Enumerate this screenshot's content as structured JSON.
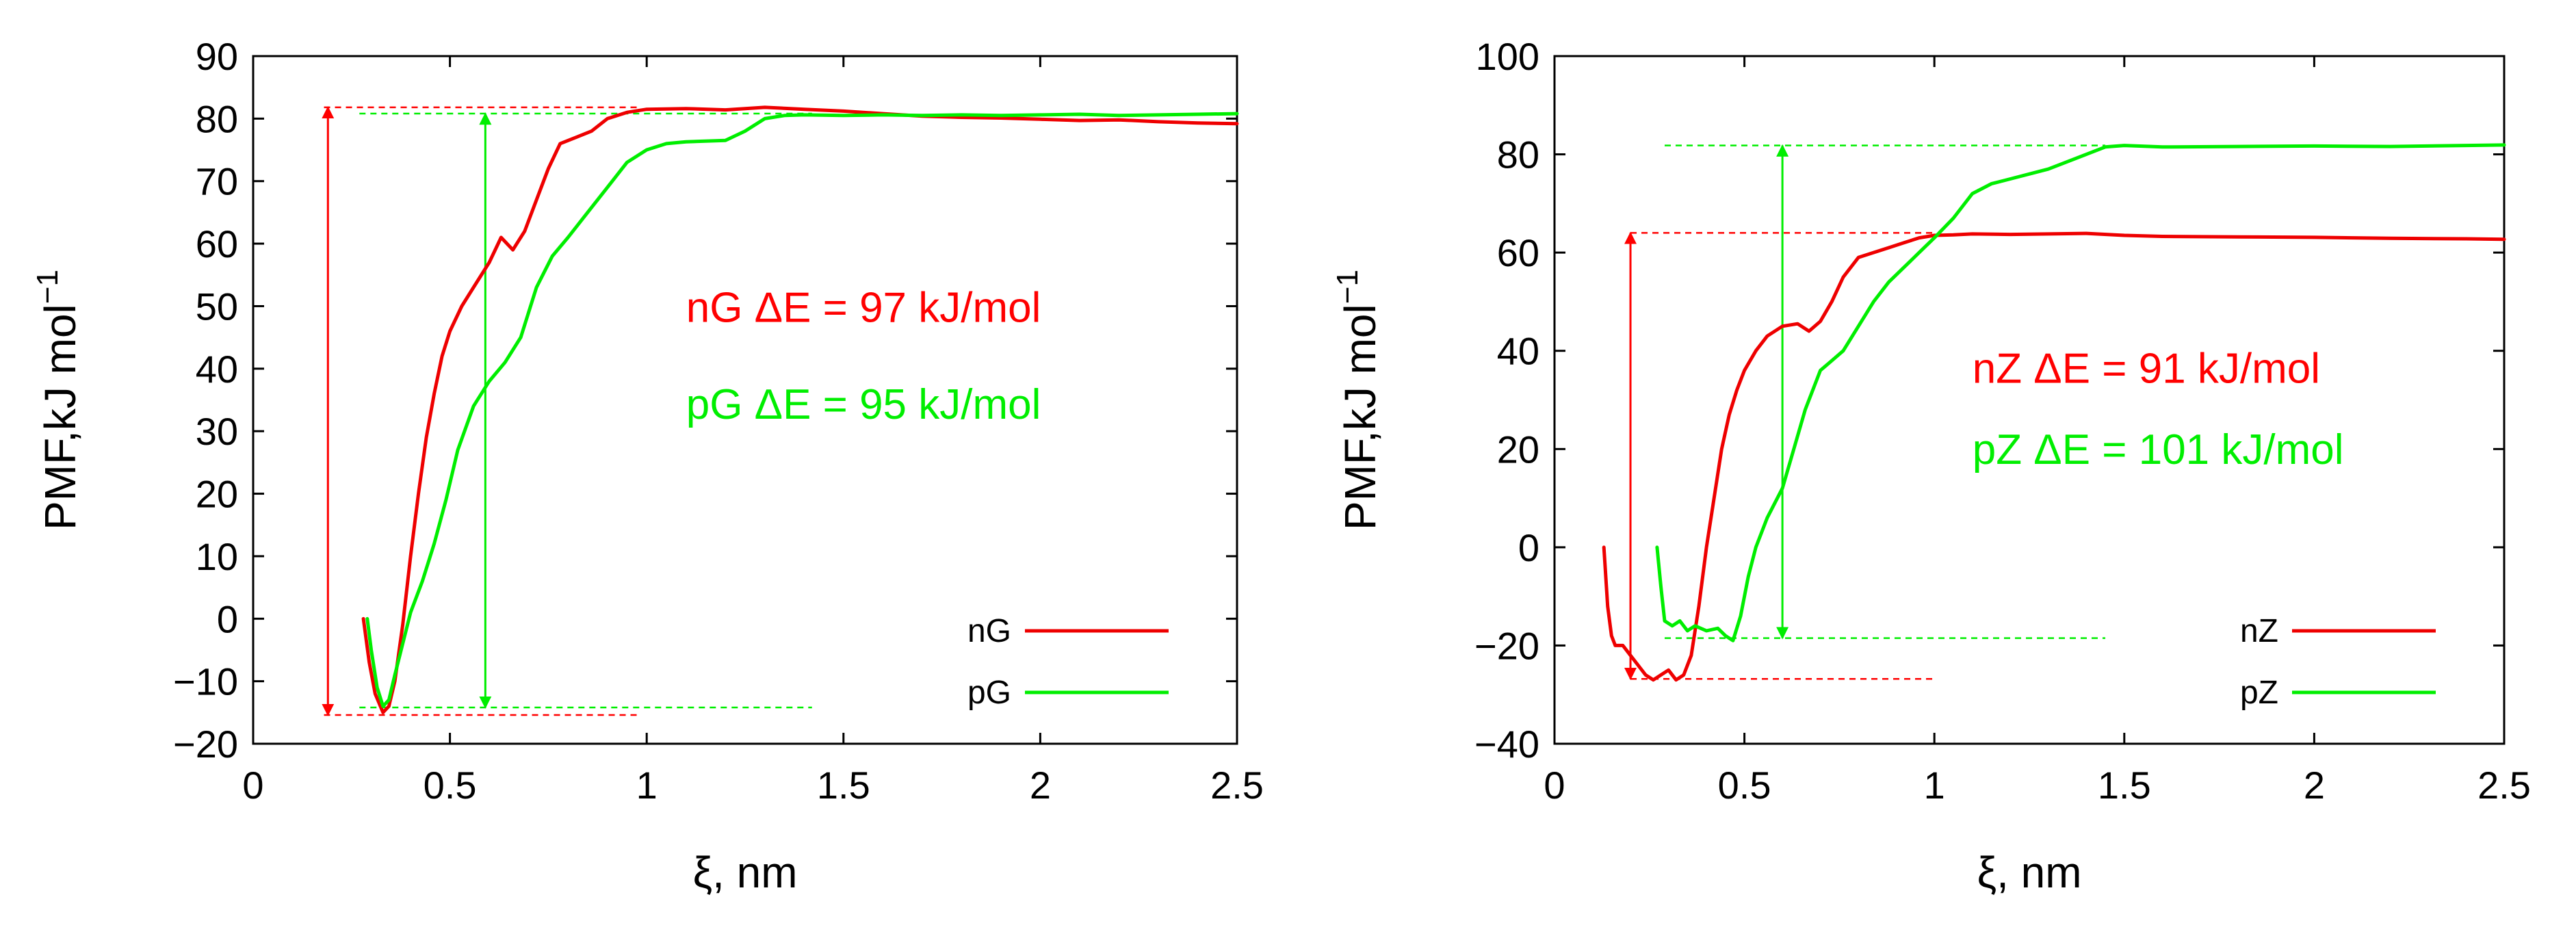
{
  "chart_data": [
    {
      "type": "line",
      "ylabel": "PMF,kJ mol",
      "ylabel_sup": "−1",
      "xlabel": "ξ, nm",
      "xlim": [
        0,
        2.5
      ],
      "ylim": [
        -20,
        90
      ],
      "xticks": [
        0,
        0.5,
        1,
        1.5,
        2,
        2.5
      ],
      "xtick_labels": [
        "0",
        "0.5",
        "1",
        "1.5",
        "2",
        "2.5"
      ],
      "yticks": [
        -20,
        -10,
        0,
        10,
        20,
        30,
        40,
        50,
        60,
        70,
        80,
        90
      ],
      "ytick_labels": [
        "−20",
        "−10",
        "0",
        "10",
        "20",
        "30",
        "40",
        "50",
        "60",
        "70",
        "80",
        "90"
      ],
      "legend_position": "bottom-right",
      "annotations": [
        {
          "text": "nG ΔE = 97 kJ/mol",
          "color": "#ff0000",
          "x": 1.1,
          "y": 47.5
        },
        {
          "text": "pG ΔE = 95 kJ/mol",
          "color": "#00ee00",
          "x": 1.1,
          "y": 32
        }
      ],
      "series": [
        {
          "name": "nG",
          "color": "#ee0000",
          "x": [
            0.28,
            0.295,
            0.31,
            0.33,
            0.345,
            0.36,
            0.38,
            0.4,
            0.42,
            0.44,
            0.46,
            0.48,
            0.5,
            0.53,
            0.56,
            0.6,
            0.63,
            0.66,
            0.69,
            0.72,
            0.75,
            0.78,
            0.82,
            0.86,
            0.9,
            0.95,
            1.0,
            1.1,
            1.2,
            1.3,
            1.4,
            1.5,
            1.6,
            1.7,
            1.8,
            1.9,
            2.0,
            2.1,
            2.2,
            2.3,
            2.4,
            2.5
          ],
          "y": [
            0,
            -7,
            -12,
            -15,
            -14,
            -10,
            -1,
            10,
            20,
            29,
            36,
            42,
            46,
            50,
            53,
            57,
            61,
            59,
            62,
            67,
            72,
            76,
            77,
            78,
            80,
            81,
            81.5,
            81.6,
            81.4,
            81.8,
            81.5,
            81.2,
            80.8,
            80.4,
            80.2,
            80.1,
            79.9,
            79.7,
            79.8,
            79.5,
            79.3,
            79.2
          ]
        },
        {
          "name": "pG",
          "color": "#00ee00",
          "x": [
            0.29,
            0.3,
            0.315,
            0.33,
            0.345,
            0.36,
            0.38,
            0.4,
            0.43,
            0.46,
            0.49,
            0.52,
            0.56,
            0.6,
            0.64,
            0.68,
            0.72,
            0.76,
            0.8,
            0.85,
            0.9,
            0.95,
            1.0,
            1.05,
            1.1,
            1.2,
            1.25,
            1.3,
            1.35,
            1.4,
            1.5,
            1.6,
            1.7,
            1.8,
            1.9,
            2.0,
            2.1,
            2.2,
            2.3,
            2.4,
            2.5
          ],
          "y": [
            0,
            -5,
            -11,
            -14,
            -13,
            -9,
            -4,
            1,
            6,
            12,
            19,
            27,
            34,
            38,
            41,
            45,
            53,
            58,
            61,
            65,
            69,
            73,
            75,
            76,
            76.3,
            76.5,
            78,
            80,
            80.5,
            80.6,
            80.5,
            80.6,
            80.5,
            80.6,
            80.5,
            80.6,
            80.7,
            80.5,
            80.6,
            80.7,
            80.8
          ]
        }
      ],
      "guides": [
        {
          "color": "#ff0000",
          "hline_y": [
            81.8,
            -15.4
          ],
          "hline_x": [
            0.18,
            0.98
          ],
          "arrow_x": 0.19
        },
        {
          "color": "#00ee00",
          "hline_y": [
            80.8,
            -14.2
          ],
          "hline_x": [
            0.27,
            1.42
          ],
          "arrow_x": 0.59
        }
      ]
    },
    {
      "type": "line",
      "ylabel": "PMF,kJ mol",
      "ylabel_sup": "−1",
      "xlabel": "ξ, nm",
      "xlim": [
        0,
        2.5
      ],
      "ylim": [
        -40,
        100
      ],
      "xticks": [
        0,
        0.5,
        1,
        1.5,
        2,
        2.5
      ],
      "xtick_labels": [
        "0",
        "0.5",
        "1",
        "1.5",
        "2",
        "2.5"
      ],
      "yticks": [
        -40,
        -20,
        0,
        20,
        40,
        60,
        80,
        100
      ],
      "ytick_labels": [
        "−40",
        "−20",
        "0",
        "20",
        "40",
        "60",
        "80",
        "100"
      ],
      "legend_position": "bottom-right",
      "annotations": [
        {
          "text": "nZ ΔE = 91 kJ/mol",
          "color": "#ff0000",
          "x": 1.1,
          "y": 33.5
        },
        {
          "text": "pZ ΔE = 101 kJ/mol",
          "color": "#00ee00",
          "x": 1.1,
          "y": 17
        }
      ],
      "series": [
        {
          "name": "nZ",
          "color": "#ee0000",
          "x": [
            0.13,
            0.14,
            0.15,
            0.16,
            0.18,
            0.2,
            0.22,
            0.24,
            0.26,
            0.28,
            0.3,
            0.32,
            0.34,
            0.36,
            0.38,
            0.4,
            0.42,
            0.44,
            0.46,
            0.48,
            0.5,
            0.53,
            0.56,
            0.6,
            0.64,
            0.67,
            0.7,
            0.73,
            0.76,
            0.8,
            0.84,
            0.88,
            0.92,
            0.96,
            1.0,
            1.05,
            1.1,
            1.2,
            1.3,
            1.4,
            1.5,
            1.6,
            1.8,
            2.0,
            2.2,
            2.4,
            2.5
          ],
          "y": [
            0,
            -12,
            -18,
            -20,
            -20,
            -22,
            -24,
            -26,
            -27,
            -26,
            -25,
            -27,
            -26,
            -22,
            -12,
            0,
            10,
            20,
            27,
            32,
            36,
            40,
            43,
            45,
            45.5,
            44,
            46,
            50,
            55,
            59,
            60,
            61,
            62,
            63,
            63.5,
            63.6,
            63.8,
            63.7,
            63.8,
            63.9,
            63.5,
            63.3,
            63.2,
            63.1,
            62.9,
            62.8,
            62.7
          ]
        },
        {
          "name": "pZ",
          "color": "#00ee00",
          "x": [
            0.27,
            0.28,
            0.29,
            0.31,
            0.33,
            0.35,
            0.37,
            0.4,
            0.43,
            0.45,
            0.47,
            0.49,
            0.51,
            0.53,
            0.56,
            0.6,
            0.63,
            0.66,
            0.7,
            0.73,
            0.76,
            0.8,
            0.84,
            0.88,
            0.92,
            0.96,
            1.0,
            1.05,
            1.1,
            1.15,
            1.2,
            1.3,
            1.4,
            1.45,
            1.5,
            1.6,
            1.8,
            2.0,
            2.2,
            2.4,
            2.5
          ],
          "y": [
            0,
            -8,
            -15,
            -16,
            -15,
            -17,
            -16,
            -17,
            -16.5,
            -18,
            -19,
            -14,
            -6,
            0,
            6,
            12,
            20,
            28,
            36,
            38,
            40,
            45,
            50,
            54,
            57,
            60,
            63,
            67,
            72,
            74,
            75,
            77,
            80,
            81.5,
            81.8,
            81.5,
            81.6,
            81.7,
            81.6,
            81.8,
            81.9
          ]
        }
      ],
      "guides": [
        {
          "color": "#ff0000",
          "hline_y": [
            64,
            -26.8
          ],
          "hline_x": [
            0.2,
            1.0
          ],
          "arrow_x": 0.2
        },
        {
          "color": "#00ee00",
          "hline_y": [
            81.8,
            -18.5
          ],
          "hline_x": [
            0.29,
            1.45
          ],
          "arrow_x": 0.6
        }
      ]
    }
  ]
}
